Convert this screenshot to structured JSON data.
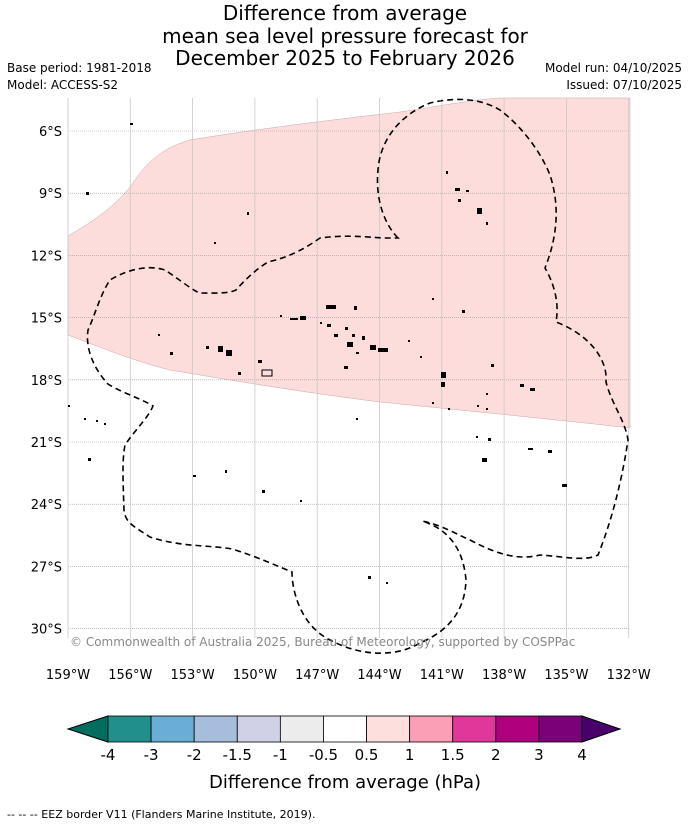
{
  "title": {
    "line1": "Difference from average",
    "line2": "mean sea level pressure forecast for",
    "line3": "December 2025 to February 2026"
  },
  "meta": {
    "base_period": "Base period: 1981-2018",
    "model": "Model: ACCESS-S2",
    "model_run": "Model run: 04/10/2025",
    "issued": "Issued: 07/10/2025"
  },
  "map": {
    "credit": "© Commonwealth of Australia 2025, Bureau of Meteorology, supported by COSPPac",
    "lat_labels": [
      "6°S",
      "9°S",
      "12°S",
      "15°S",
      "18°S",
      "21°S",
      "24°S",
      "27°S",
      "30°S"
    ],
    "lon_labels": [
      "159°W",
      "156°W",
      "153°W",
      "150°W",
      "147°W",
      "144°W",
      "141°W",
      "138°W",
      "135°W",
      "132°W"
    ],
    "anomaly_region": {
      "category": "0.5 to 1",
      "color": "#fddcdc"
    }
  },
  "colorbar": {
    "title": "Difference from average (hPa)",
    "ticks": [
      "-4",
      "-3",
      "-2",
      "-1.5",
      "-1",
      "-0.5",
      "0.5",
      "1",
      "1.5",
      "2",
      "3",
      "4"
    ],
    "colors": [
      "#21908d",
      "#6aaed6",
      "#a6bddb",
      "#d0d1e6",
      "#ececec",
      "#ffffff",
      "#fde0dd",
      "#fa9fb5",
      "#e0379b",
      "#ae017e",
      "#7a0177"
    ],
    "under_color": "#006d5e",
    "over_color": "#49006a"
  },
  "footnote": "-- -- -- EEZ border V11 (Flanders Marine Institute, 2019)."
}
